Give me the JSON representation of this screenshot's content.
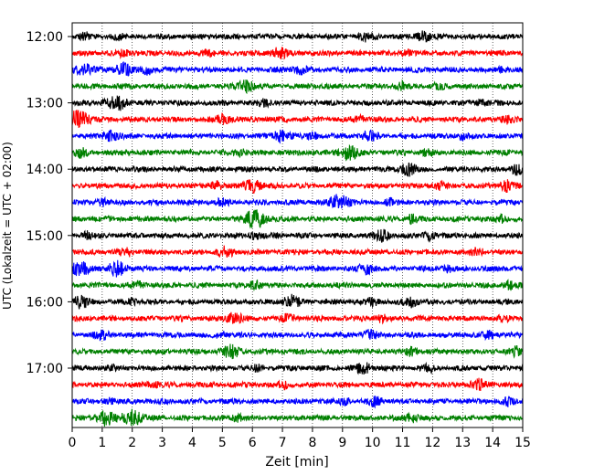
{
  "chart_data": {
    "type": "line",
    "title": "",
    "xlabel": "Zeit  [min]",
    "ylabel": "UTC (Lokalzeit = UTC + 02:00)",
    "xlim": [
      0,
      15
    ],
    "x_ticks": [
      0,
      1,
      2,
      3,
      4,
      5,
      6,
      7,
      8,
      9,
      10,
      11,
      12,
      13,
      14,
      15
    ],
    "x_tick_labels": [
      "0",
      "1",
      "2",
      "3",
      "4",
      "5",
      "6",
      "7",
      "8",
      "9",
      "10",
      "11",
      "12",
      "13",
      "14",
      "15"
    ],
    "y_tick_labels": [
      "12:00",
      "13:00",
      "14:00",
      "15:00",
      "16:00",
      "17:00"
    ],
    "grid": "vertical dotted",
    "line_cycle_colors": [
      "#000000",
      "#ff0000",
      "#0000ff",
      "#008000"
    ],
    "trace_interval_min": 15,
    "traces": [
      {
        "start": "12:00",
        "bursts": [
          [
            0.4,
            0.35
          ],
          [
            1.5,
            0.25
          ],
          [
            9.8,
            0.4
          ],
          [
            11.7,
            0.5
          ]
        ]
      },
      {
        "start": "12:15",
        "bursts": [
          [
            1.7,
            0.3
          ],
          [
            4.5,
            0.3
          ],
          [
            6.9,
            0.5
          ],
          [
            11.2,
            0.25
          ]
        ]
      },
      {
        "start": "12:30",
        "bursts": [
          [
            0.4,
            0.6
          ],
          [
            1.7,
            0.6
          ],
          [
            2.5,
            0.4
          ],
          [
            7.6,
            0.4
          ],
          [
            14.3,
            0.2
          ]
        ]
      },
      {
        "start": "12:45",
        "bursts": [
          [
            5.8,
            0.6
          ],
          [
            11.0,
            0.3
          ],
          [
            12.2,
            0.25
          ]
        ]
      },
      {
        "start": "13:00",
        "bursts": [
          [
            1.2,
            0.35
          ],
          [
            1.6,
            0.6
          ],
          [
            6.4,
            0.3
          ],
          [
            13.7,
            0.3
          ]
        ]
      },
      {
        "start": "13:15",
        "bursts": [
          [
            0.2,
            0.9
          ],
          [
            5.0,
            0.5
          ],
          [
            9.6,
            0.3
          ],
          [
            14.5,
            0.4
          ]
        ]
      },
      {
        "start": "13:30",
        "bursts": [
          [
            1.3,
            0.5
          ],
          [
            7.0,
            0.6
          ],
          [
            8.0,
            0.35
          ],
          [
            9.9,
            0.5
          ],
          [
            13.0,
            0.3
          ]
        ]
      },
      {
        "start": "13:45",
        "bursts": [
          [
            0.3,
            0.4
          ],
          [
            5.6,
            0.3
          ],
          [
            9.2,
            0.7
          ],
          [
            11.8,
            0.25
          ]
        ]
      },
      {
        "start": "14:00",
        "bursts": [
          [
            11.2,
            0.6
          ],
          [
            14.9,
            0.6
          ]
        ]
      },
      {
        "start": "14:15",
        "bursts": [
          [
            4.8,
            0.4
          ],
          [
            6.0,
            0.6
          ],
          [
            12.2,
            0.3
          ],
          [
            14.5,
            0.5
          ]
        ]
      },
      {
        "start": "14:30",
        "bursts": [
          [
            1.0,
            0.35
          ],
          [
            5.0,
            0.3
          ],
          [
            8.9,
            0.8
          ],
          [
            10.6,
            0.3
          ]
        ]
      },
      {
        "start": "14:45",
        "bursts": [
          [
            6.1,
            0.9
          ],
          [
            11.3,
            0.35
          ],
          [
            14.3,
            0.3
          ]
        ]
      },
      {
        "start": "15:00",
        "bursts": [
          [
            0.5,
            0.3
          ],
          [
            6.1,
            0.3
          ],
          [
            10.3,
            0.5
          ],
          [
            11.9,
            0.4
          ]
        ]
      },
      {
        "start": "15:15",
        "bursts": [
          [
            1.8,
            0.4
          ],
          [
            5.1,
            0.5
          ],
          [
            13.5,
            0.35
          ]
        ]
      },
      {
        "start": "15:30",
        "bursts": [
          [
            0.3,
            0.7
          ],
          [
            1.5,
            0.7
          ],
          [
            9.8,
            0.5
          ],
          [
            12.5,
            0.3
          ]
        ]
      },
      {
        "start": "15:45",
        "bursts": [
          [
            2.2,
            0.3
          ],
          [
            6.1,
            0.4
          ],
          [
            14.6,
            0.4
          ]
        ]
      },
      {
        "start": "16:00",
        "bursts": [
          [
            0.3,
            0.6
          ],
          [
            2.0,
            0.3
          ],
          [
            7.3,
            0.6
          ],
          [
            10.0,
            0.3
          ],
          [
            11.3,
            0.5
          ]
        ]
      },
      {
        "start": "16:15",
        "bursts": [
          [
            5.4,
            0.6
          ],
          [
            7.2,
            0.3
          ],
          [
            10.3,
            0.3
          ],
          [
            14.4,
            0.3
          ]
        ]
      },
      {
        "start": "16:30",
        "bursts": [
          [
            1.0,
            0.4
          ],
          [
            4.9,
            0.3
          ],
          [
            9.9,
            0.45
          ],
          [
            13.9,
            0.3
          ]
        ]
      },
      {
        "start": "16:45",
        "bursts": [
          [
            5.3,
            0.6
          ],
          [
            11.3,
            0.35
          ],
          [
            14.8,
            0.4
          ]
        ]
      },
      {
        "start": "17:00",
        "bursts": [
          [
            1.4,
            0.25
          ],
          [
            6.2,
            0.3
          ],
          [
            9.7,
            0.5
          ],
          [
            11.9,
            0.3
          ]
        ]
      },
      {
        "start": "17:15",
        "bursts": [
          [
            2.7,
            0.3
          ],
          [
            7.1,
            0.3
          ],
          [
            13.5,
            0.5
          ]
        ]
      },
      {
        "start": "17:30",
        "bursts": [
          [
            1.2,
            0.3
          ],
          [
            9.1,
            0.3
          ],
          [
            10.1,
            0.45
          ],
          [
            14.5,
            0.3
          ]
        ]
      },
      {
        "start": "17:45",
        "bursts": [
          [
            1.1,
            0.7
          ],
          [
            2.0,
            0.8
          ],
          [
            5.5,
            0.35
          ],
          [
            11.3,
            0.4
          ]
        ]
      }
    ]
  }
}
